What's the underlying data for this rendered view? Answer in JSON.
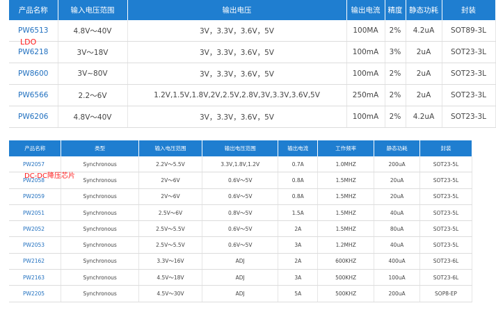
{
  "ldo": {
    "label": "LDO",
    "headers": [
      "产品名称",
      "输入电压范围",
      "输出电压",
      "输出电流",
      "精度",
      "静态功耗",
      "封装"
    ],
    "rows": [
      [
        "PW6513",
        "4.8V～40V",
        "3V，3.3V，3.6V，5V",
        "100MA",
        "2%",
        "4.2uA",
        "SOT89-3L"
      ],
      [
        "PW6218",
        "3V～18V",
        "3V，3.3V，3.6V，5V",
        "100mA",
        "3%",
        "2uA",
        "SOT23-3L"
      ],
      [
        "PW8600",
        "3V~80V",
        "3V，3.3V，3.6V，5V",
        "100mA",
        "2%",
        "2uA",
        "SOT23-3L"
      ],
      [
        "PW6566",
        "2.2～6V",
        "1.2V,1.5V,1.8V,2V,2.5V,2.8V,3V,3.3V,3.6V,5V",
        "250mA",
        "2%",
        "2uA",
        "SOT23-3L"
      ],
      [
        "PW6206",
        "4.8V～40V",
        "3V，3.3V，3.6V，5V",
        "100mA",
        "2%",
        "4.2uA",
        "SOT23-3L"
      ]
    ]
  },
  "dcdc": {
    "label": "DC-DC降压芯片",
    "headers": [
      "产品名称",
      "类型",
      "输入电压范围",
      "输出电压范围",
      "输出电流",
      "工作频率",
      "静态功耗",
      "封装"
    ],
    "rows": [
      [
        "PW2057",
        "Synchronous",
        "2.2V～5.5V",
        "3.3V,1.8V,1.2V",
        "0.7A",
        "1.0MHZ",
        "200uA",
        "SOT23-5L"
      ],
      [
        "PW2058",
        "Synchronous",
        "2V～6V",
        "0.6V～5V",
        "0.8A",
        "1.5MHZ",
        "20uA",
        "SOT23-5L"
      ],
      [
        "PW2059",
        "Synchronous",
        "2V～6V",
        "0.6V～5V",
        "0.8A",
        "1.5MHZ",
        "20uA",
        "SOT23-5L"
      ],
      [
        "PW2051",
        "Synchronous",
        "2.5V～6V",
        "0.8V～5V",
        "1.5A",
        "1.5MHZ",
        "40uA",
        "SOT23-5L"
      ],
      [
        "PW2052",
        "Synchronous",
        "2.5V～5.5V",
        "0.6V～5V",
        "2A",
        "1.5MHZ",
        "80uA",
        "SOT23-5L"
      ],
      [
        "PW2053",
        "Synchronous",
        "2.5V～5.5V",
        "0.6V～5V",
        "3A",
        "1.2MHZ",
        "40uA",
        "SOT23-5L"
      ],
      [
        "PW2162",
        "Synchronous",
        "3.3V～16V",
        "ADJ",
        "2A",
        "600KHZ",
        "400uA",
        "SOT23-6L"
      ],
      [
        "PW2163",
        "Synchronous",
        "4.5V～18V",
        "ADJ",
        "3A",
        "500KHZ",
        "100uA",
        "SOT23-6L"
      ],
      [
        "PW2205",
        "Synchronous",
        "4.5V～30V",
        "ADJ",
        "5A",
        "500KHZ",
        "200uA",
        "SOP8-EP"
      ]
    ]
  }
}
